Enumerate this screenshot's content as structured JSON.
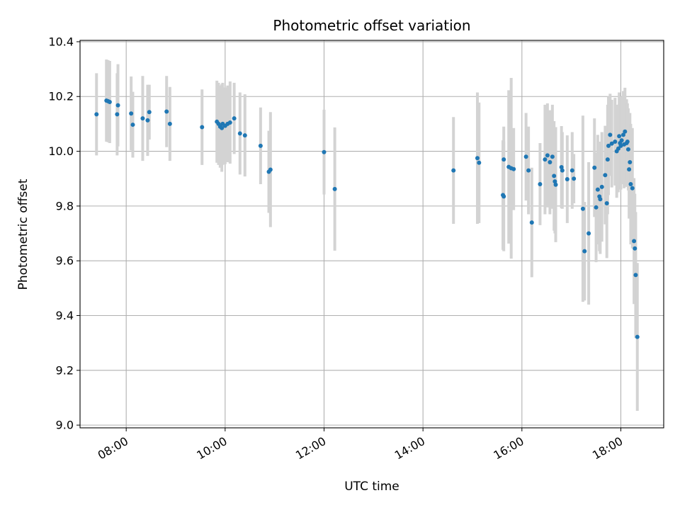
{
  "chart_data": {
    "type": "scatter",
    "title": "Photometric offset variation",
    "xlabel": "UTC time",
    "ylabel": "Photometric offset",
    "x_axis_type": "time",
    "xlim": [
      "07:04",
      "18:52"
    ],
    "ylim": [
      8.99,
      10.405
    ],
    "x_ticks": [
      "08:00",
      "10:00",
      "12:00",
      "14:00",
      "16:00",
      "18:00"
    ],
    "y_ticks": [
      "9.0",
      "9.2",
      "9.4",
      "9.6",
      "9.8",
      "10.0",
      "10.2",
      "10.4"
    ],
    "grid": true,
    "legend": "none",
    "colors": {
      "points": "#1f77b4",
      "error_bars": "#d3d3d3",
      "grid": "#b0b0b0"
    },
    "series": [
      {
        "x": [
          "07:24",
          "07:36",
          "07:38",
          "07:40",
          "07:49",
          "07:50",
          "08:06",
          "08:08",
          "08:20",
          "08:26",
          "08:28",
          "08:49",
          "08:53",
          "09:32",
          "09:50",
          "09:52",
          "09:54",
          "09:56",
          "09:57",
          "10:00",
          "10:03",
          "10:06",
          "10:11",
          "10:18",
          "10:24",
          "10:43",
          "10:53",
          "10:55",
          "12:00",
          "12:13",
          "14:37",
          "15:06",
          "15:08",
          "15:37",
          "15:38",
          "15:38",
          "15:44",
          "15:47",
          "15:50",
          "16:05",
          "16:08",
          "16:12",
          "16:22",
          "16:28",
          "16:31",
          "16:34",
          "16:37",
          "16:39",
          "16:40",
          "16:41",
          "16:48",
          "16:49",
          "16:55",
          "17:01",
          "17:03",
          "17:14",
          "17:16",
          "17:21",
          "17:28",
          "17:30",
          "17:32",
          "17:34",
          "17:35",
          "17:37",
          "17:41",
          "17:43",
          "17:44",
          "17:45",
          "17:47",
          "17:49",
          "17:53",
          "17:55",
          "17:57",
          "17:58",
          "17:59",
          "18:00",
          "18:01",
          "18:03",
          "18:04",
          "18:05",
          "18:07",
          "18:08",
          "18:09",
          "18:10",
          "18:11",
          "18:12",
          "18:14",
          "18:16",
          "18:17",
          "18:18",
          "18:20"
        ],
        "y": [
          10.135,
          10.185,
          10.183,
          10.18,
          10.135,
          10.168,
          10.138,
          10.097,
          10.12,
          10.113,
          10.143,
          10.145,
          10.1,
          10.088,
          10.108,
          10.1,
          10.09,
          10.085,
          10.1,
          10.093,
          10.1,
          10.105,
          10.12,
          10.065,
          10.058,
          10.02,
          9.925,
          9.933,
          9.997,
          9.862,
          9.93,
          9.975,
          9.958,
          9.84,
          9.835,
          9.97,
          9.943,
          9.938,
          9.935,
          9.98,
          9.93,
          9.74,
          9.88,
          9.97,
          9.985,
          9.96,
          9.98,
          9.91,
          9.89,
          9.878,
          9.942,
          9.93,
          9.898,
          9.93,
          9.9,
          9.79,
          9.635,
          9.7,
          9.94,
          9.795,
          9.86,
          9.835,
          9.825,
          9.87,
          9.913,
          9.81,
          9.97,
          10.02,
          10.06,
          10.028,
          10.035,
          10.0,
          10.01,
          10.055,
          10.03,
          10.02,
          10.04,
          10.06,
          10.025,
          10.072,
          10.03,
          10.035,
          10.007,
          9.934,
          9.96,
          9.88,
          9.865,
          9.672,
          9.645,
          9.548,
          9.322
        ],
        "err": [
          0.15,
          0.15,
          0.15,
          0.15,
          0.15,
          0.15,
          0.135,
          0.12,
          0.155,
          0.13,
          0.1,
          0.13,
          0.135,
          0.138,
          0.15,
          0.15,
          0.15,
          0.16,
          0.15,
          0.14,
          0.14,
          0.15,
          0.13,
          0.15,
          0.15,
          0.14,
          0.15,
          0.21,
          0.155,
          0.225,
          0.195,
          0.24,
          0.22,
          0.2,
          0.2,
          0.12,
          0.28,
          0.33,
          0.15,
          0.16,
          0.16,
          0.2,
          0.15,
          0.2,
          0.19,
          0.19,
          0.19,
          0.2,
          0.19,
          0.21,
          0.15,
          0.14,
          0.16,
          0.14,
          0.09,
          0.34,
          0.18,
          0.26,
          0.18,
          0.2,
          0.2,
          0.2,
          0.2,
          0.2,
          0.18,
          0.2,
          0.2,
          0.18,
          0.15,
          0.16,
          0.16,
          0.17,
          0.16,
          0.16,
          0.16,
          0.16,
          0.16,
          0.16,
          0.16,
          0.16,
          0.16,
          0.14,
          0.15,
          0.18,
          0.18,
          0.22,
          0.22,
          0.23,
          0.2,
          0.23,
          0.27
        ]
      }
    ]
  }
}
